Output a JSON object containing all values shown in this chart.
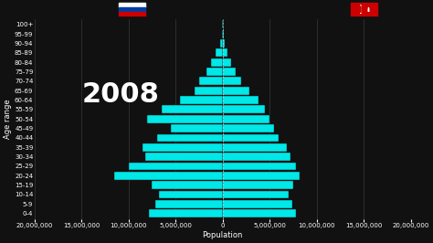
{
  "year": "2008",
  "background_color": "#111111",
  "bar_color": "#00E8E8",
  "bar_edge_color": "#111111",
  "grid_color": "#444444",
  "text_color": "#ffffff",
  "age_groups": [
    "0-4",
    "5-9",
    "10-14",
    "15-19",
    "20-24",
    "25-29",
    "30-34",
    "35-39",
    "40-44",
    "45-49",
    "50-54",
    "55-59",
    "60-64",
    "65-69",
    "70-74",
    "75-79",
    "80-84",
    "85-89",
    "90-94",
    "95-99",
    "100+"
  ],
  "russia": [
    7800000,
    7200000,
    6800000,
    7500000,
    11500000,
    10000000,
    8200000,
    8500000,
    7000000,
    5500000,
    8000000,
    6500000,
    4500000,
    3000000,
    2500000,
    1700000,
    1200000,
    700000,
    300000,
    100000,
    50000
  ],
  "turkey": [
    7800000,
    7400000,
    7000000,
    7500000,
    8200000,
    7800000,
    7200000,
    6800000,
    6000000,
    5500000,
    5000000,
    4500000,
    3800000,
    2800000,
    2000000,
    1400000,
    900000,
    500000,
    200000,
    80000,
    30000
  ],
  "xlim": 20000000,
  "xlabel": "Population",
  "ylabel": "Age range",
  "axis_fontsize": 5,
  "bar_height": 0.85,
  "figsize": [
    4.74,
    2.66
  ],
  "dpi": 100,
  "russia_flag": {
    "white": "#FFFFFF",
    "blue": "#003DA5",
    "red": "#CC0000"
  },
  "turkey_flag_red": "#CC0000"
}
